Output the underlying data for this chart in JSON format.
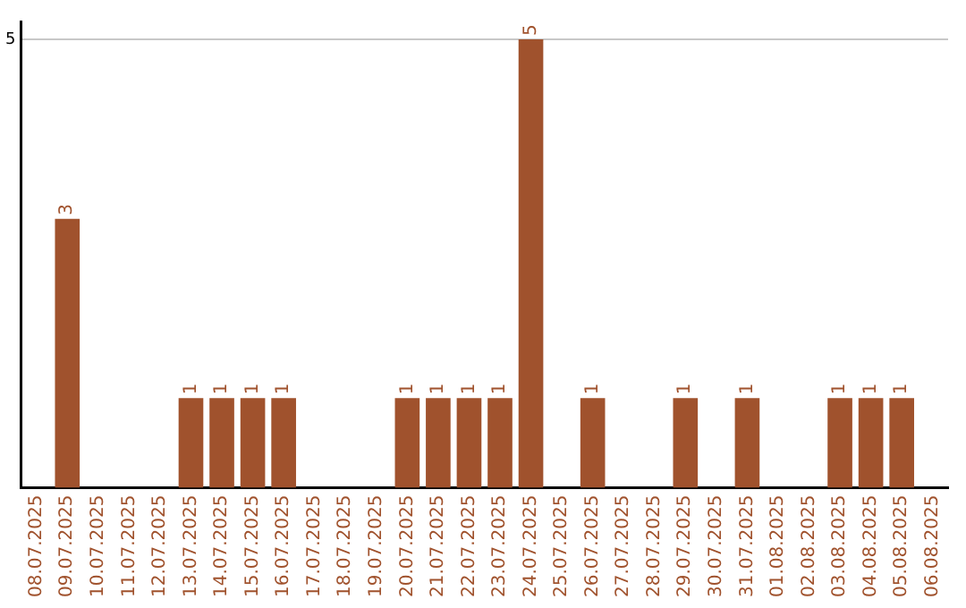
{
  "chart_data": {
    "type": "bar",
    "categories": [
      "08.07.2025",
      "09.07.2025",
      "10.07.2025",
      "11.07.2025",
      "12.07.2025",
      "13.07.2025",
      "14.07.2025",
      "15.07.2025",
      "16.07.2025",
      "17.07.2025",
      "18.07.2025",
      "19.07.2025",
      "20.07.2025",
      "21.07.2025",
      "22.07.2025",
      "23.07.2025",
      "24.07.2025",
      "25.07.2025",
      "26.07.2025",
      "27.07.2025",
      "28.07.2025",
      "29.07.2025",
      "30.07.2025",
      "31.07.2025",
      "01.08.2025",
      "02.08.2025",
      "03.08.2025",
      "04.08.2025",
      "05.08.2025",
      "06.08.2025"
    ],
    "values": [
      0,
      3,
      0,
      0,
      0,
      1,
      1,
      1,
      1,
      0,
      0,
      0,
      1,
      1,
      1,
      1,
      5,
      0,
      1,
      0,
      0,
      1,
      0,
      1,
      0,
      0,
      1,
      1,
      1,
      0
    ],
    "value_labels": [
      null,
      "3",
      null,
      null,
      null,
      "1",
      "1",
      "1",
      "1",
      null,
      null,
      null,
      "1",
      "1",
      "1",
      "1",
      "5",
      null,
      "1",
      null,
      null,
      "1",
      null,
      "1",
      null,
      null,
      "1",
      "1",
      "1",
      null
    ],
    "color": "#a0522d",
    "ylim": [
      0,
      5.2
    ],
    "yticks": [
      5
    ],
    "grid": "y",
    "legend": false
  }
}
